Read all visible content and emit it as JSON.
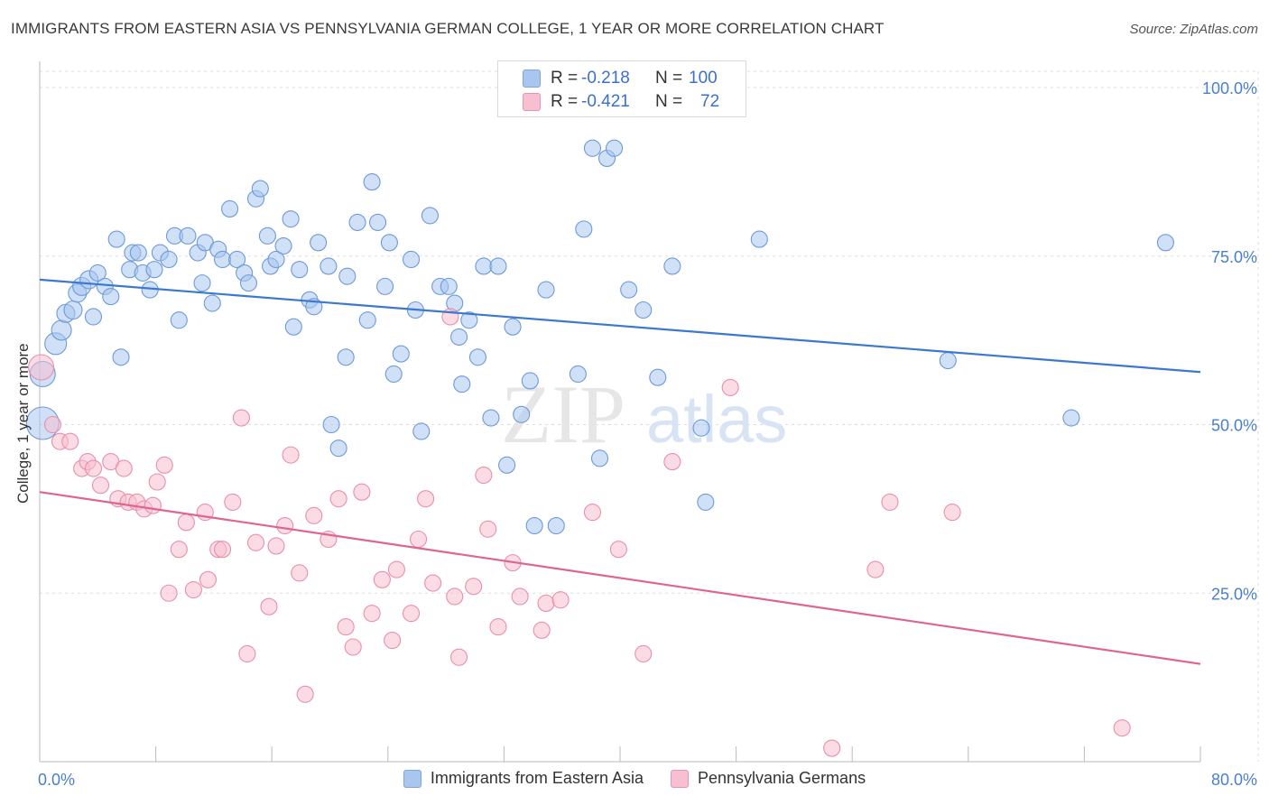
{
  "title": "IMMIGRANTS FROM EASTERN ASIA VS PENNSYLVANIA GERMAN COLLEGE, 1 YEAR OR MORE CORRELATION CHART",
  "source": "Source: ZipAtlas.com",
  "watermark": {
    "zip": "ZIP",
    "atlas": "atlas"
  },
  "stats_legend": [
    {
      "r_label": "R =",
      "r_value": "-0.218",
      "n_label": "N =",
      "n_value": "100",
      "color": "#a8c6f0",
      "border": "#7ea5dc"
    },
    {
      "r_label": "R =",
      "r_value": "-0.421",
      "n_label": "N =",
      "n_value": "72",
      "color": "#f7bfd0",
      "border": "#e895b0"
    }
  ],
  "colors": {
    "blue_fill": "#a8c6f0",
    "blue_stroke": "#6e9ad8",
    "blue_line": "#3c78d0",
    "pink_fill": "#f7bfd0",
    "pink_stroke": "#e88fac",
    "pink_line": "#e0648f",
    "tick_text": "#4a7fd0",
    "grid": "#dddddd"
  },
  "chart_data": {
    "type": "scatter",
    "title": "IMMIGRANTS FROM EASTERN ASIA VS PENNSYLVANIA GERMAN COLLEGE, 1 YEAR OR MORE CORRELATION CHART",
    "xlabel": "",
    "ylabel": "College, 1 year or more",
    "xlim": [
      0,
      80
    ],
    "ylim": [
      0,
      105
    ],
    "x_tick_labels": [
      "0.0%",
      "80.0%"
    ],
    "y_tick_labels": [
      "25.0%",
      "50.0%",
      "75.0%",
      "100.0%"
    ],
    "y_ticks": [
      25,
      50,
      75,
      100
    ],
    "grid": true,
    "legend_placement": "bottom-center",
    "series": [
      {
        "name": "Immigrants from Eastern Asia",
        "color": "#a8c6f0",
        "trend": {
          "x": [
            0,
            80
          ],
          "y": [
            71.5,
            57.8
          ]
        },
        "points": [
          [
            0.2,
            57.5,
            14
          ],
          [
            0.2,
            50.2,
            18
          ],
          [
            1.1,
            62,
            12
          ],
          [
            1.5,
            64,
            11
          ],
          [
            1.8,
            66.5,
            10
          ],
          [
            2.3,
            67,
            10
          ],
          [
            2.6,
            69.5,
            10
          ],
          [
            2.9,
            70.5,
            10
          ],
          [
            3.4,
            71.5,
            10
          ],
          [
            3.7,
            66,
            9
          ],
          [
            4.0,
            72.5,
            9
          ],
          [
            4.5,
            70.5,
            9
          ],
          [
            4.9,
            69,
            9
          ],
          [
            5.3,
            77.5,
            9
          ],
          [
            5.6,
            60,
            9
          ],
          [
            6.2,
            73,
            9
          ],
          [
            6.4,
            75.5,
            9
          ],
          [
            6.8,
            75.5,
            9
          ],
          [
            7.1,
            72.5,
            9
          ],
          [
            7.6,
            70,
            9
          ],
          [
            7.9,
            73,
            9
          ],
          [
            8.3,
            75.5,
            9
          ],
          [
            8.9,
            74.5,
            9
          ],
          [
            9.3,
            78,
            9
          ],
          [
            9.6,
            65.5,
            9
          ],
          [
            10.2,
            78,
            9
          ],
          [
            10.9,
            75.5,
            9
          ],
          [
            11.2,
            71,
            9
          ],
          [
            11.4,
            77,
            9
          ],
          [
            11.9,
            68,
            9
          ],
          [
            12.3,
            76,
            9
          ],
          [
            12.6,
            74.5,
            9
          ],
          [
            13.1,
            82,
            9
          ],
          [
            13.6,
            74.5,
            9
          ],
          [
            14.1,
            72.5,
            9
          ],
          [
            14.4,
            71,
            9
          ],
          [
            14.9,
            83.5,
            9
          ],
          [
            15.2,
            85,
            9
          ],
          [
            15.7,
            78,
            9
          ],
          [
            15.9,
            73.5,
            9
          ],
          [
            16.3,
            74.5,
            9
          ],
          [
            16.8,
            76.5,
            9
          ],
          [
            17.3,
            80.5,
            9
          ],
          [
            17.5,
            64.5,
            9
          ],
          [
            17.9,
            73,
            9
          ],
          [
            18.6,
            68.5,
            9
          ],
          [
            18.9,
            67.5,
            9
          ],
          [
            19.2,
            77,
            9
          ],
          [
            19.9,
            73.5,
            9
          ],
          [
            20.6,
            46.5,
            9
          ],
          [
            20.1,
            50,
            9
          ],
          [
            21.1,
            60,
            9
          ],
          [
            21.2,
            72,
            9
          ],
          [
            21.9,
            80,
            9
          ],
          [
            22.6,
            65.5,
            9
          ],
          [
            22.9,
            86,
            9
          ],
          [
            23.3,
            80,
            9
          ],
          [
            23.8,
            70.5,
            9
          ],
          [
            24.1,
            77,
            9
          ],
          [
            24.4,
            57.5,
            9
          ],
          [
            24.9,
            60.5,
            9
          ],
          [
            25.6,
            74.5,
            9
          ],
          [
            25.9,
            67,
            9
          ],
          [
            26.3,
            49,
            9
          ],
          [
            26.9,
            81,
            9
          ],
          [
            27.6,
            70.5,
            9
          ],
          [
            28.2,
            70.5,
            9
          ],
          [
            28.6,
            68,
            9
          ],
          [
            28.9,
            63,
            9
          ],
          [
            29.1,
            56,
            9
          ],
          [
            29.6,
            65.5,
            9
          ],
          [
            30.2,
            60,
            9
          ],
          [
            30.6,
            73.5,
            9
          ],
          [
            31.1,
            51,
            9
          ],
          [
            31.6,
            73.5,
            9
          ],
          [
            32.2,
            44,
            9
          ],
          [
            32.6,
            64.5,
            9
          ],
          [
            33.2,
            51.5,
            9
          ],
          [
            33.8,
            56.5,
            9
          ],
          [
            34.1,
            35,
            9
          ],
          [
            34.9,
            70,
            9
          ],
          [
            35.6,
            35,
            9
          ],
          [
            37.1,
            57.5,
            9
          ],
          [
            37.5,
            79,
            9
          ],
          [
            38.1,
            91,
            9
          ],
          [
            38.6,
            45,
            9
          ],
          [
            39.1,
            89.5,
            9
          ],
          [
            39.6,
            91,
            9
          ],
          [
            40.6,
            70,
            9
          ],
          [
            41.6,
            67,
            9
          ],
          [
            42.6,
            57,
            9
          ],
          [
            43.6,
            73.5,
            9
          ],
          [
            45.6,
            49.5,
            9
          ],
          [
            45.9,
            38.5,
            9
          ],
          [
            49.6,
            77.5,
            9
          ],
          [
            62.6,
            59.5,
            9
          ],
          [
            71.1,
            51,
            9
          ],
          [
            77.6,
            77,
            9
          ]
        ]
      },
      {
        "name": "Pennsylvania Germans",
        "color": "#f7bfd0",
        "trend": {
          "x": [
            0,
            80
          ],
          "y": [
            40,
            14.5
          ]
        },
        "points": [
          [
            0.1,
            58.5,
            14
          ],
          [
            0.9,
            50,
            9
          ],
          [
            1.4,
            47.5,
            9
          ],
          [
            2.1,
            47.5,
            9
          ],
          [
            2.9,
            43.5,
            9
          ],
          [
            3.3,
            44.5,
            9
          ],
          [
            3.7,
            43.5,
            9
          ],
          [
            4.2,
            41,
            9
          ],
          [
            4.9,
            44.5,
            9
          ],
          [
            5.4,
            39,
            9
          ],
          [
            5.8,
            43.5,
            9
          ],
          [
            6.1,
            38.5,
            9
          ],
          [
            6.7,
            38.5,
            9
          ],
          [
            7.2,
            37.5,
            9
          ],
          [
            7.8,
            38,
            9
          ],
          [
            8.1,
            41.5,
            9
          ],
          [
            8.6,
            44,
            9
          ],
          [
            8.9,
            25,
            9
          ],
          [
            9.6,
            31.5,
            9
          ],
          [
            10.1,
            35.5,
            9
          ],
          [
            10.6,
            25.5,
            9
          ],
          [
            11.4,
            37,
            9
          ],
          [
            11.6,
            27,
            9
          ],
          [
            12.3,
            31.5,
            9
          ],
          [
            12.6,
            31.5,
            9
          ],
          [
            13.3,
            38.5,
            9
          ],
          [
            13.9,
            51,
            9
          ],
          [
            14.3,
            16,
            9
          ],
          [
            14.9,
            32.5,
            9
          ],
          [
            15.8,
            23,
            9
          ],
          [
            16.3,
            32,
            9
          ],
          [
            16.9,
            35,
            9
          ],
          [
            17.3,
            45.5,
            9
          ],
          [
            17.9,
            28,
            9
          ],
          [
            18.3,
            10,
            9
          ],
          [
            18.9,
            36.5,
            9
          ],
          [
            19.9,
            33,
            9
          ],
          [
            20.6,
            39,
            9
          ],
          [
            21.1,
            20,
            9
          ],
          [
            21.6,
            17,
            9
          ],
          [
            22.2,
            40,
            9
          ],
          [
            22.9,
            22,
            9
          ],
          [
            23.6,
            27,
            9
          ],
          [
            24.3,
            18,
            9
          ],
          [
            24.6,
            28.5,
            9
          ],
          [
            25.6,
            22,
            9
          ],
          [
            26.1,
            33,
            9
          ],
          [
            26.6,
            39,
            9
          ],
          [
            27.1,
            26.5,
            9
          ],
          [
            28.3,
            66,
            9
          ],
          [
            28.6,
            24.5,
            9
          ],
          [
            28.9,
            15.5,
            9
          ],
          [
            29.9,
            26,
            9
          ],
          [
            30.6,
            42.5,
            9
          ],
          [
            30.9,
            34.5,
            9
          ],
          [
            31.6,
            20,
            9
          ],
          [
            32.6,
            29.5,
            9
          ],
          [
            33.1,
            24.5,
            9
          ],
          [
            34.6,
            19.5,
            9
          ],
          [
            34.9,
            23.5,
            9
          ],
          [
            35.9,
            24,
            9
          ],
          [
            38.1,
            37,
            9
          ],
          [
            39.9,
            31.5,
            9
          ],
          [
            41.6,
            16,
            9
          ],
          [
            43.6,
            44.5,
            9
          ],
          [
            47.6,
            55.5,
            9
          ],
          [
            54.6,
            2,
            9
          ],
          [
            57.6,
            28.5,
            9
          ],
          [
            58.6,
            38.5,
            9
          ],
          [
            62.9,
            37,
            9
          ],
          [
            74.6,
            5,
            9
          ]
        ]
      }
    ]
  }
}
